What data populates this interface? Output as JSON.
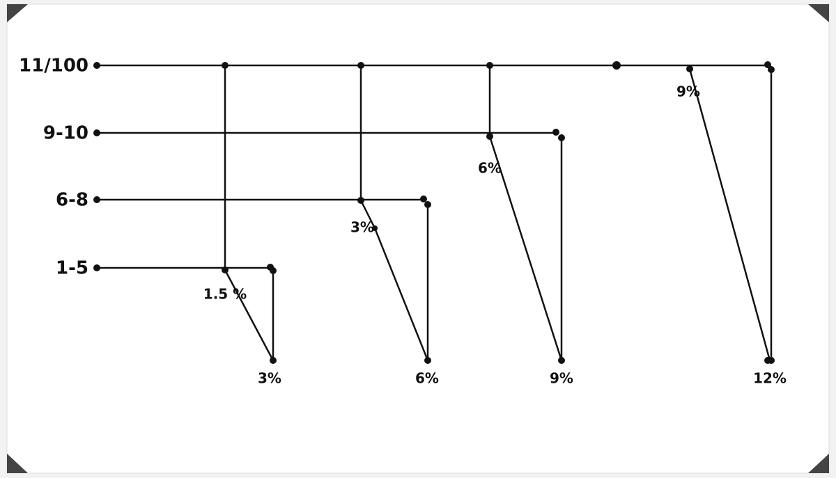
{
  "rows": [
    "11/100",
    "9-10",
    "6-8",
    "1-5"
  ],
  "branch_labels": [
    "1.5 %",
    "3%",
    "6%",
    "9%"
  ],
  "end_labels": [
    "3%",
    "6%",
    "9%",
    "12%"
  ]
}
